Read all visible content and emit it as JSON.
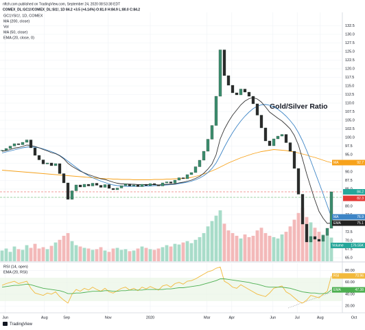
{
  "header": {
    "publisher": "nftch.com published on TradingView.com, September 24, 2020 08:53:38 EDT",
    "symbol_line": "COMEX_DL:GC1!/COMEX_DL:SI1!, 1D  84.2  +3.5 (+4.14%)  O:81.0  H:84.9  L:80.0  C:84.2"
  },
  "footer": {
    "brand": "TradingView"
  },
  "chart_data": [
    {
      "type": "candlestick",
      "annotation": "Gold/Silver Ratio",
      "xlim": [
        0,
        83
      ],
      "xticks": [
        {
          "value": 1.3,
          "label": "Jun"
        },
        {
          "value": 10.8,
          "label": "Aug"
        },
        {
          "value": 16.2,
          "label": "Sep"
        },
        {
          "value": 26.3,
          "label": "Nov"
        },
        {
          "value": 36.5,
          "label": "2020"
        },
        {
          "value": 50.3,
          "label": "Mar"
        },
        {
          "value": 56.3,
          "label": "Apr"
        },
        {
          "value": 66.3,
          "label": "Jun"
        },
        {
          "value": 72.2,
          "label": "Jul"
        },
        {
          "value": 77.8,
          "label": "Aug"
        },
        {
          "value": 86,
          "label": "Oct"
        }
      ],
      "ylim": [
        64,
        134
      ],
      "yticks": [
        {
          "value": 65,
          "label": "65.0"
        },
        67.5,
        {
          "value": 70,
          "label": "70.0"
        },
        72.5,
        {
          "value": 75,
          "label": "75.0"
        },
        77.5,
        {
          "value": 80,
          "label": "80.0"
        },
        82.5,
        {
          "value": 85,
          "label": "85.0"
        },
        87.5,
        {
          "value": 90,
          "label": "90.0"
        },
        92.5,
        {
          "value": 95,
          "label": "95.0"
        },
        97.5,
        {
          "value": 100,
          "label": "100.0"
        },
        102.5,
        {
          "value": 105,
          "label": "105.0"
        },
        107.5,
        {
          "value": 110,
          "label": "110.0"
        },
        112.5,
        {
          "value": 115,
          "label": "115.0"
        },
        117.5,
        {
          "value": 120,
          "label": "120.0"
        },
        122.5,
        {
          "value": 125,
          "label": "125.0"
        },
        127.5,
        {
          "value": 130,
          "label": "130.0"
        },
        132.5
      ],
      "grid": true,
      "candles": {
        "name": "GC1!/SI1!, 1D, COMEX",
        "up_color": "#3c8d6e",
        "down_color": "#2b2b2b",
        "close": [
          96.3,
          96.8,
          97.5,
          98.2,
          97.9,
          98.6,
          99.3,
          97.0,
          94.8,
          93.5,
          92.3,
          92.6,
          91.8,
          92.4,
          89.5,
          86.8,
          82.0,
          84.5,
          86.2,
          85.6,
          86.4,
          85.9,
          86.7,
          86.1,
          85.5,
          86.3,
          85.2,
          84.8,
          85.3,
          86.0,
          86.5,
          85.9,
          86.2,
          85.7,
          86.4,
          86.0,
          86.6,
          86.2,
          85.9,
          86.8,
          87.1,
          86.7,
          87.6,
          88.3,
          88.0,
          89.2,
          89.8,
          91.5,
          93.4,
          96.0,
          99.5,
          103.5,
          112.0,
          125.5,
          118.0,
          115.2,
          113.0,
          112.4,
          114.1,
          113.2,
          112.0,
          109.8,
          106.5,
          102.8,
          99.0,
          97.6,
          99.6,
          100.4,
          100.9,
          98.5,
          96.0,
          91.0,
          83.5,
          74.8,
          69.6,
          71.2,
          70.4,
          69.8,
          71.5,
          73.6,
          84.2
        ]
      },
      "series": [
        {
          "name": "MA (200, close)",
          "color": "#f7a21b",
          "values": [
            90.5,
            90.4,
            90.3,
            90.2,
            90.1,
            90.0,
            89.9,
            89.8,
            89.7,
            89.6,
            89.5,
            89.4,
            89.3,
            89.2,
            89.1,
            89.0,
            88.9,
            88.8,
            88.7,
            88.6,
            88.5,
            88.4,
            88.3,
            88.2,
            88.1,
            88.0,
            88.0,
            87.9,
            87.9,
            87.8,
            87.8,
            87.8,
            87.7,
            87.7,
            87.7,
            87.7,
            87.7,
            87.8,
            87.8,
            87.8,
            87.9,
            87.9,
            88.0,
            88.0,
            88.1,
            88.2,
            88.4,
            88.7,
            89.0,
            89.4,
            89.8,
            90.3,
            90.8,
            91.4,
            92.0,
            92.6,
            93.1,
            93.6,
            94.1,
            94.5,
            94.9,
            95.3,
            95.6,
            95.9,
            96.1,
            96.3,
            96.5,
            96.4,
            96.3,
            96.2,
            96.0,
            95.8,
            95.5,
            95.2,
            94.9,
            94.5,
            94.2,
            93.8,
            93.4,
            93.0,
            92.7
          ]
        },
        {
          "name": "MA (50, close)",
          "color": "#3d85c6",
          "values": [
            95.5,
            95.8,
            96.1,
            96.4,
            96.7,
            97.0,
            97.2,
            97.3,
            97.2,
            97.0,
            96.7,
            96.3,
            95.9,
            95.4,
            94.8,
            94.0,
            93.1,
            92.2,
            91.3,
            90.4,
            89.6,
            88.9,
            88.3,
            87.8,
            87.3,
            86.9,
            86.5,
            86.2,
            86.0,
            85.9,
            85.8,
            85.8,
            85.8,
            85.8,
            85.8,
            85.9,
            85.9,
            86.0,
            86.0,
            86.1,
            86.2,
            86.3,
            86.4,
            86.6,
            86.8,
            87.0,
            87.3,
            87.7,
            88.2,
            88.9,
            89.8,
            91.0,
            92.6,
            94.8,
            97.2,
            99.4,
            101.4,
            103.2,
            104.8,
            106.2,
            107.4,
            108.4,
            109.1,
            109.5,
            109.6,
            109.4,
            108.9,
            108.2,
            107.3,
            106.2,
            104.9,
            103.4,
            101.4,
            99.0,
            96.2,
            93.2,
            90.0,
            86.8,
            83.6,
            80.2,
            76.9
          ]
        },
        {
          "name": "EMA (20, close, 0)",
          "color": "#333333",
          "values": [
            96.0,
            96.2,
            96.5,
            96.9,
            97.1,
            97.4,
            97.8,
            97.7,
            97.4,
            97.0,
            96.5,
            96.1,
            95.6,
            95.3,
            94.7,
            93.8,
            92.5,
            91.6,
            90.9,
            90.2,
            89.7,
            89.2,
            88.8,
            88.4,
            88.0,
            87.8,
            87.4,
            87.0,
            86.7,
            86.5,
            86.5,
            86.4,
            86.4,
            86.3,
            86.3,
            86.3,
            86.3,
            86.3,
            86.2,
            86.3,
            86.4,
            86.4,
            86.5,
            86.8,
            87.0,
            87.3,
            87.6,
            88.1,
            88.7,
            89.6,
            90.8,
            92.3,
            95.0,
            99.6,
            102.4,
            104.6,
            106.5,
            108.0,
            109.5,
            110.6,
            111.3,
            111.6,
            111.2,
            110.3,
            108.9,
            107.4,
            106.5,
            105.6,
            104.8,
            103.7,
            102.5,
            100.6,
            97.8,
            93.7,
            89.4,
            85.5,
            81.8,
            78.5,
            76.5,
            75.0,
            75.1
          ]
        }
      ],
      "volume": {
        "name": "Vol",
        "up_color": "#a8dcc9",
        "down_color": "#f3b9b9",
        "values": [
          80,
          95,
          70,
          110,
          90,
          85,
          120,
          100,
          130,
          95,
          105,
          90,
          115,
          140,
          160,
          190,
          210,
          150,
          120,
          110,
          100,
          95,
          85,
          90,
          105,
          80,
          70,
          95,
          100,
          85,
          90,
          75,
          80,
          95,
          110,
          100,
          90,
          85,
          95,
          105,
          120,
          110,
          130,
          125,
          140,
          150,
          135,
          160,
          180,
          210,
          260,
          300,
          340,
          380,
          280,
          230,
          210,
          190,
          170,
          200,
          180,
          190,
          230,
          250,
          210,
          190,
          180,
          170,
          200,
          220,
          260,
          310,
          360,
          400,
          330,
          290,
          250,
          220,
          200,
          190,
          176.55
        ]
      },
      "badges": [
        {
          "label": "MA",
          "value": 92.7,
          "color": "#f7a21b"
        },
        {
          "value": 84.2,
          "color": "#26a69a"
        },
        {
          "value": 82.3,
          "color": "#e53935"
        },
        {
          "label": "MA",
          "value": 76.9,
          "color": "#3d85c6"
        },
        {
          "label": "EMA",
          "value": 75.1,
          "color": "#222222"
        }
      ],
      "volume_badge": {
        "label": "Volume",
        "value": 176.55,
        "value_label": "176.55K",
        "color": "#26a69a"
      }
    },
    {
      "type": "line",
      "xlim": [
        0,
        83
      ],
      "ylim": [
        12,
        90
      ],
      "yticks": [
        {
          "value": 80,
          "label": "80.00"
        },
        {
          "value": 60,
          "label": "60.00"
        },
        {
          "value": 40,
          "label": "40.00"
        },
        {
          "value": 20,
          "label": "20.00"
        }
      ],
      "grid": true,
      "series": [
        {
          "name": "RSI (14, open)",
          "color": "#f2b93b",
          "values": [
            55,
            58,
            60,
            62,
            58,
            60,
            62,
            50,
            42,
            40,
            38,
            42,
            40,
            44,
            36,
            30,
            25,
            40,
            48,
            45,
            50,
            47,
            52,
            48,
            45,
            50,
            44,
            42,
            46,
            50,
            52,
            47,
            50,
            46,
            52,
            49,
            53,
            50,
            47,
            54,
            56,
            52,
            58,
            60,
            57,
            62,
            63,
            66,
            70,
            74,
            78,
            80,
            84,
            86,
            62,
            58,
            52,
            50,
            56,
            52,
            48,
            44,
            40,
            38,
            36,
            42,
            50,
            52,
            54,
            44,
            40,
            34,
            28,
            25,
            30,
            38,
            36,
            34,
            40,
            45,
            70.96
          ]
        },
        {
          "name": "EMA (20, RSI)",
          "color": "#4caf50",
          "values": [
            52,
            53,
            54,
            55,
            55,
            56,
            57,
            56,
            54,
            52,
            50,
            49,
            48,
            47,
            46,
            44,
            41,
            41,
            42,
            42,
            43,
            44,
            45,
            45,
            45,
            46,
            46,
            45,
            45,
            46,
            46,
            47,
            47,
            47,
            47,
            48,
            48,
            48,
            48,
            48,
            49,
            49,
            50,
            51,
            51,
            52,
            53,
            54,
            55,
            57,
            59,
            61,
            63,
            66,
            66,
            65,
            64,
            63,
            62,
            61,
            60,
            58,
            57,
            55,
            53,
            52,
            52,
            52,
            52,
            51,
            50,
            48,
            46,
            44,
            43,
            42,
            42,
            41,
            41,
            42,
            47.38
          ]
        }
      ],
      "badges": [
        {
          "label": "RSI",
          "value": 70.96,
          "color": "#f2b93b"
        },
        {
          "label": "EMA",
          "value": 47.38,
          "color": "#4caf50"
        }
      ]
    }
  ]
}
